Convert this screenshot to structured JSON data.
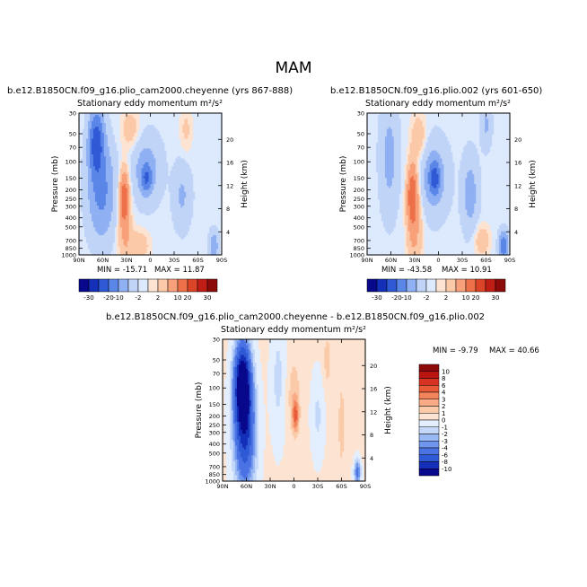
{
  "page": {
    "title": "MAM"
  },
  "panels": [
    {
      "case_title": "b.e12.B1850CN.f09_g16.plio_cam2000.cheyenne (yrs 867-888)",
      "subtitle": "Stationary eddy momentum  m²/s²",
      "min_label": "MIN = -15.71",
      "max_label": "MAX = 11.87"
    },
    {
      "case_title": "b.e12.B1850CN.f09_g16.plio.002 (yrs 601-650)",
      "subtitle": "Stationary eddy momentum  m²/s²",
      "min_label": "MIN = -43.58",
      "max_label": "MAX = 10.91"
    },
    {
      "case_title": "b.e12.B1850CN.f09_g16.plio_cam2000.cheyenne - b.e12.B1850CN.f09_g16.plio.002",
      "subtitle": "Stationary eddy momentum  m²/s²",
      "min_label": "MIN = -9.79",
      "max_label": "MAX = 40.66"
    }
  ],
  "colors": {
    "full_scale": [
      "#08088c",
      "#1430b8",
      "#2f5ad6",
      "#5a86e8",
      "#8fb0f2",
      "#c0d4f8",
      "#dde9fd",
      "#fde4d2",
      "#fbc8a8",
      "#f7a07a",
      "#ee7048",
      "#dc4428",
      "#c01e14",
      "#8c0a0a"
    ],
    "diff_scale": [
      "#08088c",
      "#1430b8",
      "#2f5ad6",
      "#4a72e2",
      "#6f95ec",
      "#9ab8f4",
      "#c4d8fa",
      "#e3eefe",
      "#fde4d2",
      "#fbcaa8",
      "#f8ab86",
      "#f2845c",
      "#e85a38",
      "#d83322",
      "#b81410",
      "#8c0a0a"
    ]
  },
  "chart_data": [
    {
      "type": "contour",
      "title": "b.e12.B1850CN.f09_g16.plio_cam2000.cheyenne (yrs 867-888)",
      "subtitle": "Stationary eddy momentum",
      "units": "m²/s²",
      "xlabel": "",
      "ylabel": "Pressure (mb)",
      "y2label": "Height (km)",
      "x_ticks": [
        "90N",
        "60N",
        "30N",
        "0",
        "30S",
        "60S",
        "90S"
      ],
      "y_ticks": [
        "30",
        "50",
        "70",
        "100",
        "150",
        "200",
        "250",
        "300",
        "400",
        "500",
        "700",
        "850",
        "1000"
      ],
      "y2_ticks": [
        "20",
        "16",
        "12",
        "8",
        "4"
      ],
      "colorbar_levels": [
        "-30",
        "-20",
        "-10",
        "-2",
        "2",
        "10",
        "20",
        "30"
      ],
      "colorbar_position": "bottom",
      "min": -15.71,
      "max": 11.87
    },
    {
      "type": "contour",
      "title": "b.e12.B1850CN.f09_g16.plio.002 (yrs 601-650)",
      "subtitle": "Stationary eddy momentum",
      "units": "m²/s²",
      "xlabel": "",
      "ylabel": "Pressure (mb)",
      "y2label": "Height (km)",
      "x_ticks": [
        "90N",
        "60N",
        "30N",
        "0",
        "30S",
        "60S",
        "90S"
      ],
      "y_ticks": [
        "30",
        "50",
        "70",
        "100",
        "150",
        "200",
        "250",
        "300",
        "400",
        "500",
        "700",
        "850",
        "1000"
      ],
      "y2_ticks": [
        "20",
        "16",
        "12",
        "8",
        "4"
      ],
      "colorbar_levels": [
        "-30",
        "-20",
        "-10",
        "-2",
        "2",
        "10",
        "20",
        "30"
      ],
      "colorbar_position": "bottom",
      "min": -43.58,
      "max": 10.91
    },
    {
      "type": "contour",
      "title": "b.e12.B1850CN.f09_g16.plio_cam2000.cheyenne - b.e12.B1850CN.f09_g16.plio.002",
      "subtitle": "Stationary eddy momentum",
      "units": "m²/s²",
      "xlabel": "",
      "ylabel": "Pressure (mb)",
      "y2label": "Height (km)",
      "x_ticks": [
        "90N",
        "60N",
        "30N",
        "0",
        "30S",
        "60S",
        "90S"
      ],
      "y_ticks": [
        "30",
        "50",
        "70",
        "100",
        "150",
        "200",
        "250",
        "300",
        "400",
        "500",
        "700",
        "850",
        "1000"
      ],
      "y2_ticks": [
        "20",
        "16",
        "12",
        "8",
        "4"
      ],
      "colorbar_levels": [
        "10",
        "8",
        "6",
        "4",
        "3",
        "2",
        "1",
        "0",
        "-1",
        "-2",
        "-3",
        "-4",
        "-6",
        "-8",
        "-10"
      ],
      "colorbar_position": "right",
      "min": -9.79,
      "max": 40.66
    }
  ]
}
